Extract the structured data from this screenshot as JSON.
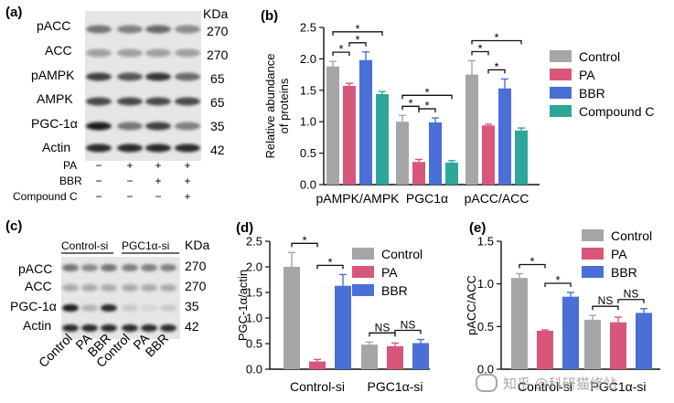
{
  "panels": {
    "a": {
      "letter": "(a)",
      "kda_header": "KDa",
      "rows": [
        {
          "label": "pACC",
          "kda": "270"
        },
        {
          "label": "ACC",
          "kda": "270"
        },
        {
          "label": "pAMPK",
          "kda": "65"
        },
        {
          "label": "AMPK",
          "kda": "65"
        },
        {
          "label": "PGC-1α",
          "kda": "35"
        },
        {
          "label": "Actin",
          "kda": "42"
        }
      ],
      "treatments": [
        {
          "label": "PA",
          "signs": [
            "−",
            "+",
            "+",
            "+"
          ]
        },
        {
          "label": "BBR",
          "signs": [
            "−",
            "−",
            "+",
            "+"
          ]
        },
        {
          "label": "Compound C",
          "signs": [
            "−",
            "−",
            "−",
            "+"
          ]
        }
      ]
    },
    "c": {
      "letter": "(c)",
      "kda_header": "KDa",
      "groups": [
        "Control-si",
        "PGC1α-si"
      ],
      "rows": [
        {
          "label": "pACC",
          "kda": "270"
        },
        {
          "label": "ACC",
          "kda": "270"
        },
        {
          "label": "PGC-1α",
          "kda": "35"
        },
        {
          "label": "Actin",
          "kda": "42"
        }
      ],
      "lane_labels": [
        "Control",
        "PA",
        "BBR",
        "Control",
        "PA",
        "BBR"
      ]
    }
  },
  "colors": {
    "Control": "#a6a6a8",
    "PA": "#d9567b",
    "BBR": "#4a6fd6",
    "Compound C": "#2ea79b"
  },
  "chart_data": [
    {
      "panel": "(b)",
      "type": "bar",
      "ylabel": "Relative abundance of proteins",
      "ylim": [
        0,
        2.5
      ],
      "yticks": [
        "0.0",
        "0.5",
        "1.0",
        "1.5",
        "2.0",
        "2.5"
      ],
      "categories": [
        "pAMPK/AMPK",
        "PGC1α",
        "pACC/ACC"
      ],
      "series": [
        {
          "name": "Control",
          "values": [
            1.88,
            1.0,
            1.75
          ],
          "errors": [
            0.08,
            0.1,
            0.22
          ]
        },
        {
          "name": "PA",
          "values": [
            1.57,
            0.36,
            0.94
          ],
          "errors": [
            0.04,
            0.04,
            0.02
          ]
        },
        {
          "name": "BBR",
          "values": [
            1.98,
            0.99,
            1.53
          ],
          "errors": [
            0.13,
            0.07,
            0.15
          ]
        },
        {
          "name": "Compound C",
          "values": [
            1.44,
            0.35,
            0.86
          ],
          "errors": [
            0.04,
            0.03,
            0.04
          ]
        }
      ],
      "legend": "right",
      "significance": [
        {
          "category": 0,
          "from": 0,
          "to": 1,
          "level": 0,
          "label": "*"
        },
        {
          "category": 0,
          "from": 1,
          "to": 2,
          "level": 0,
          "label": "*"
        },
        {
          "category": 0,
          "from": 0,
          "to": 3,
          "level": 1,
          "label": "*"
        },
        {
          "category": 1,
          "from": 0,
          "to": 1,
          "level": 0,
          "label": "*"
        },
        {
          "category": 1,
          "from": 1,
          "to": 2,
          "level": 0,
          "label": "*"
        },
        {
          "category": 1,
          "from": 0,
          "to": 3,
          "level": 1,
          "label": "*"
        },
        {
          "category": 2,
          "from": 0,
          "to": 1,
          "level": 0,
          "label": "*"
        },
        {
          "category": 2,
          "from": 1,
          "to": 2,
          "level": 0,
          "label": "*"
        },
        {
          "category": 2,
          "from": 0,
          "to": 3,
          "level": 1,
          "label": "*"
        }
      ]
    },
    {
      "panel": "(d)",
      "type": "bar",
      "ylabel": "PGC-1α/actin",
      "ylim": [
        0,
        2.5
      ],
      "yticks": [
        "0.0",
        "0.5",
        "1.0",
        "1.5",
        "2.0",
        "2.5"
      ],
      "categories": [
        "Control-si",
        "PGC1α-si"
      ],
      "series": [
        {
          "name": "Control",
          "values": [
            2.0,
            0.48
          ],
          "errors": [
            0.28,
            0.05
          ]
        },
        {
          "name": "PA",
          "values": [
            0.15,
            0.45
          ],
          "errors": [
            0.04,
            0.06
          ]
        },
        {
          "name": "BBR",
          "values": [
            1.63,
            0.51
          ],
          "errors": [
            0.22,
            0.07
          ]
        }
      ],
      "legend": "top-right",
      "significance": [
        {
          "category": 0,
          "from": 0,
          "to": 1,
          "level": 0,
          "label": "*"
        },
        {
          "category": 0,
          "from": 1,
          "to": 2,
          "level": 0,
          "label": "*"
        },
        {
          "category": 1,
          "from": 0,
          "to": 1,
          "level": 0,
          "label": "NS"
        },
        {
          "category": 1,
          "from": 1,
          "to": 2,
          "level": 0,
          "label": "NS"
        }
      ]
    },
    {
      "panel": "(e)",
      "type": "bar",
      "ylabel": "pACC/ACC",
      "ylim": [
        0,
        1.5
      ],
      "yticks": [
        "0.0",
        "0.5",
        "1.0",
        "1.5"
      ],
      "categories": [
        "Control-si",
        "PGC1α-si"
      ],
      "series": [
        {
          "name": "Control",
          "values": [
            1.07,
            0.58
          ],
          "errors": [
            0.05,
            0.05
          ]
        },
        {
          "name": "PA",
          "values": [
            0.45,
            0.55
          ],
          "errors": [
            0.01,
            0.06
          ]
        },
        {
          "name": "BBR",
          "values": [
            0.85,
            0.66
          ],
          "errors": [
            0.05,
            0.05
          ]
        }
      ],
      "legend": "top-right",
      "significance": [
        {
          "category": 0,
          "from": 0,
          "to": 1,
          "level": 0,
          "label": "*"
        },
        {
          "category": 0,
          "from": 1,
          "to": 2,
          "level": 0,
          "label": "*"
        },
        {
          "category": 1,
          "from": 0,
          "to": 1,
          "level": 0,
          "label": "NS"
        },
        {
          "category": 1,
          "from": 1,
          "to": 2,
          "level": 0,
          "label": "NS"
        }
      ]
    }
  ],
  "watermark": "知乎 @科研猫修站"
}
